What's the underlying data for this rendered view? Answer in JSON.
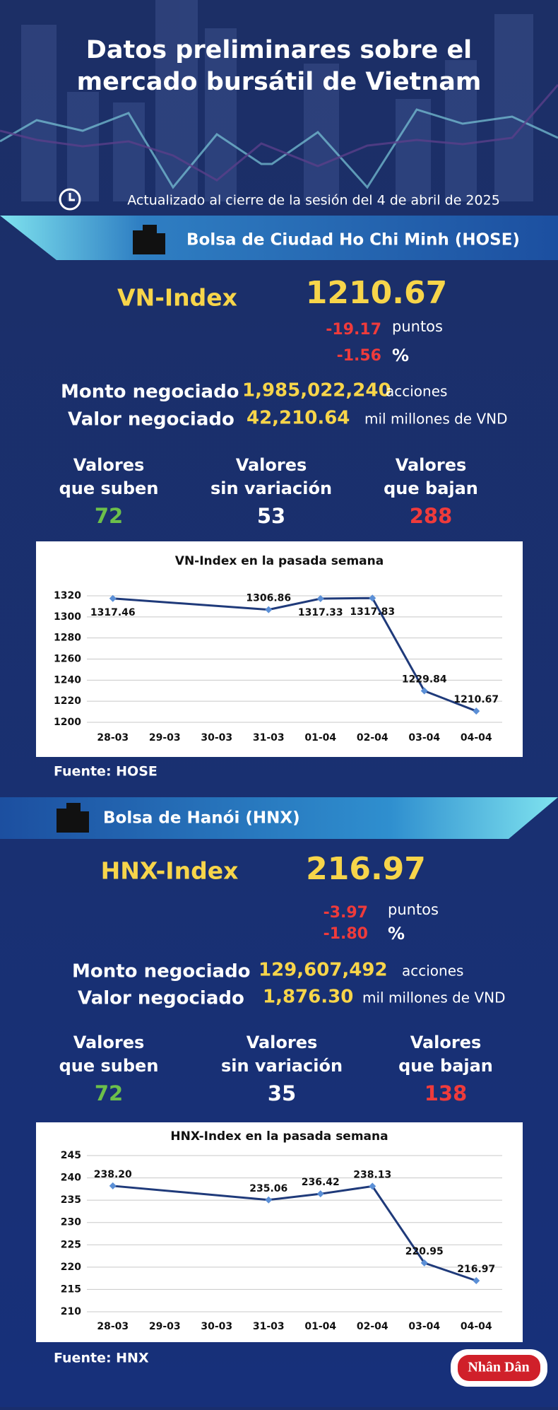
{
  "header": {
    "title": [
      "Datos preliminares sobre el",
      "mercado bursátil de Vietnam"
    ],
    "updated": "Actualizado al cierre de la sesión del 4 de abril de 2025"
  },
  "sections": [
    {
      "exchange": "Bolsa de Ciudad Ho Chi Minh (HOSE)",
      "index_name": "VN-Index",
      "index_value": "1210.67",
      "change_points": "-19.17",
      "points_unit": "puntos",
      "change_percent": "-1.56",
      "percent_unit": "%",
      "volume_label": "Monto negociado",
      "volume": "1,985,022,240",
      "volume_unit": "acciones",
      "value_label": "Valor negociado",
      "value": "42,210.64",
      "value_unit": "mil millones de VND",
      "advancers_label": [
        "Valores",
        "que suben"
      ],
      "unchanged_label": [
        "Valores",
        "sin variación"
      ],
      "decliners_label": [
        "Valores",
        "que bajan"
      ],
      "advancers": "72",
      "unchanged": "53",
      "decliners": "288",
      "source": "Fuente: HOSE"
    },
    {
      "exchange": "Bolsa de Hanói (HNX)",
      "index_name": "HNX-Index",
      "index_value": "216.97",
      "change_points": "-3.97",
      "points_unit": "puntos",
      "change_percent": "-1.80",
      "percent_unit": "%",
      "volume_label": "Monto negociado",
      "volume": "129,607,492",
      "volume_unit": "acciones",
      "value_label": "Valor negociado",
      "value": "1,876.30",
      "value_unit": "mil millones de VND",
      "advancers_label": [
        "Valores",
        "que suben"
      ],
      "unchanged_label": [
        "Valores",
        "sin variación"
      ],
      "decliners_label": [
        "Valores",
        "que bajan"
      ],
      "advancers": "72",
      "unchanged": "35",
      "decliners": "138",
      "source": "Fuente: HNX"
    }
  ],
  "chart_data": [
    {
      "type": "line",
      "title": "VN-Index en la pasada semana",
      "categories": [
        "28-03",
        "29-03",
        "30-03",
        "31-03",
        "01-04",
        "02-04",
        "03-04",
        "04-04"
      ],
      "values": [
        1317.46,
        null,
        null,
        1306.86,
        1317.33,
        1317.83,
        1229.84,
        1210.67
      ],
      "color": "#1f3a7a",
      "marker_color": "#5b8fd6",
      "span_gaps": true,
      "ylim": [
        1200,
        1320
      ],
      "yticks": [
        1200,
        1220,
        1240,
        1260,
        1280,
        1300,
        1320
      ],
      "grid": true
    },
    {
      "type": "line",
      "title": "HNX-Index en la pasada semana",
      "categories": [
        "28-03",
        "29-03",
        "30-03",
        "31-03",
        "01-04",
        "02-04",
        "03-04",
        "04-04"
      ],
      "values": [
        238.2,
        null,
        null,
        235.06,
        236.42,
        238.13,
        220.95,
        216.97
      ],
      "value_labels": [
        "238.20",
        null,
        null,
        "235.06",
        "236.42",
        "238.13",
        "220.95",
        "216.97"
      ],
      "color": "#1f3a7a",
      "marker_color": "#5b8fd6",
      "span_gaps": true,
      "ylim": [
        210,
        245
      ],
      "yticks": [
        210,
        215,
        220,
        225,
        230,
        235,
        240,
        245
      ],
      "grid": true
    }
  ],
  "logo": "Nhân Dân"
}
